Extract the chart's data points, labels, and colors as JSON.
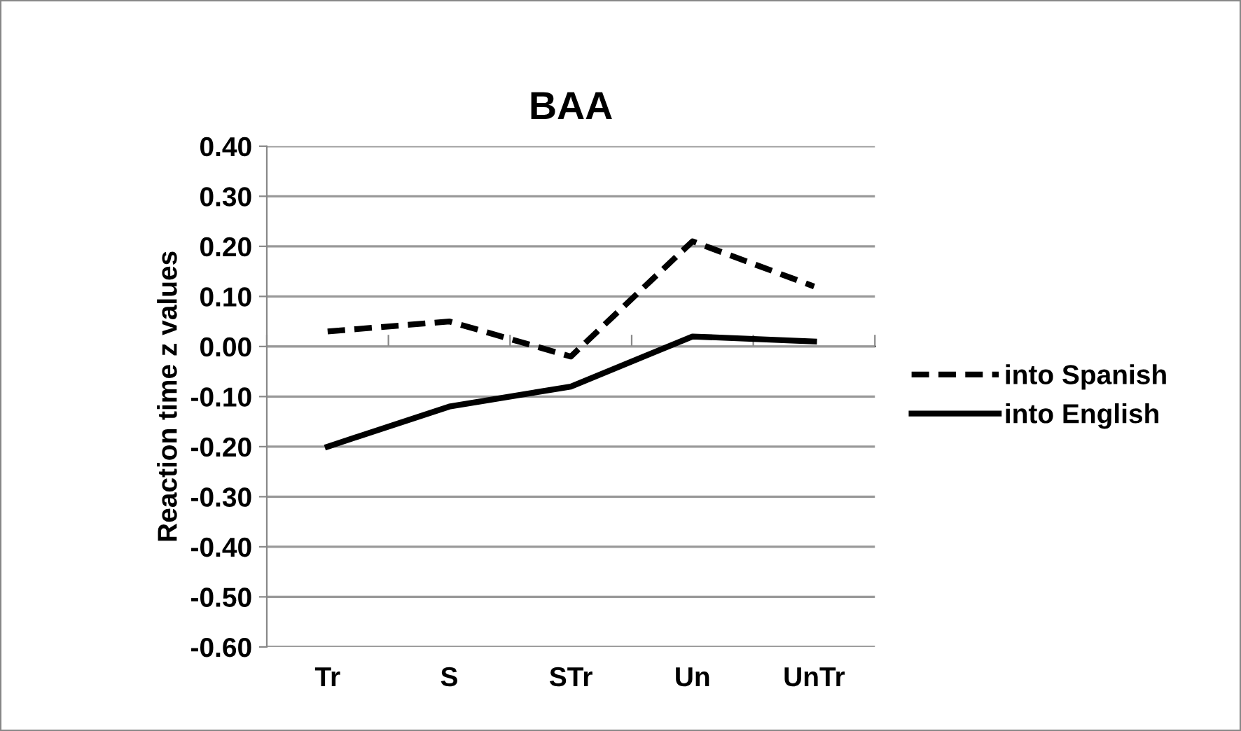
{
  "chart_data": {
    "type": "line",
    "title": "BAA",
    "ylabel": "Reaction time z values",
    "categories": [
      "Tr",
      "S",
      "STr",
      "Un",
      "UnTr"
    ],
    "series": [
      {
        "name": "into Spanish",
        "color": "#000000",
        "line_style": "dashed",
        "values": [
          0.03,
          0.05,
          -0.02,
          0.21,
          0.12
        ]
      },
      {
        "name": "into English",
        "color": "#000000",
        "line_style": "solid",
        "values": [
          -0.2,
          -0.12,
          -0.08,
          0.02,
          0.01
        ]
      }
    ],
    "ylim": [
      -0.6,
      0.4
    ],
    "yticks": [
      {
        "value": -0.6,
        "label": "-0.60"
      },
      {
        "value": -0.5,
        "label": "-0.50"
      },
      {
        "value": -0.4,
        "label": "-0.40"
      },
      {
        "value": -0.3,
        "label": "-0.30"
      },
      {
        "value": -0.2,
        "label": "-0.20"
      },
      {
        "value": -0.1,
        "label": "-0.10"
      },
      {
        "value": 0.0,
        "label": "0.00"
      },
      {
        "value": 0.1,
        "label": "0.10"
      },
      {
        "value": 0.2,
        "label": "0.20"
      },
      {
        "value": 0.3,
        "label": "0.30"
      },
      {
        "value": 0.4,
        "label": "0.40"
      }
    ],
    "grid": "y",
    "legend": "right",
    "marker": "none"
  }
}
